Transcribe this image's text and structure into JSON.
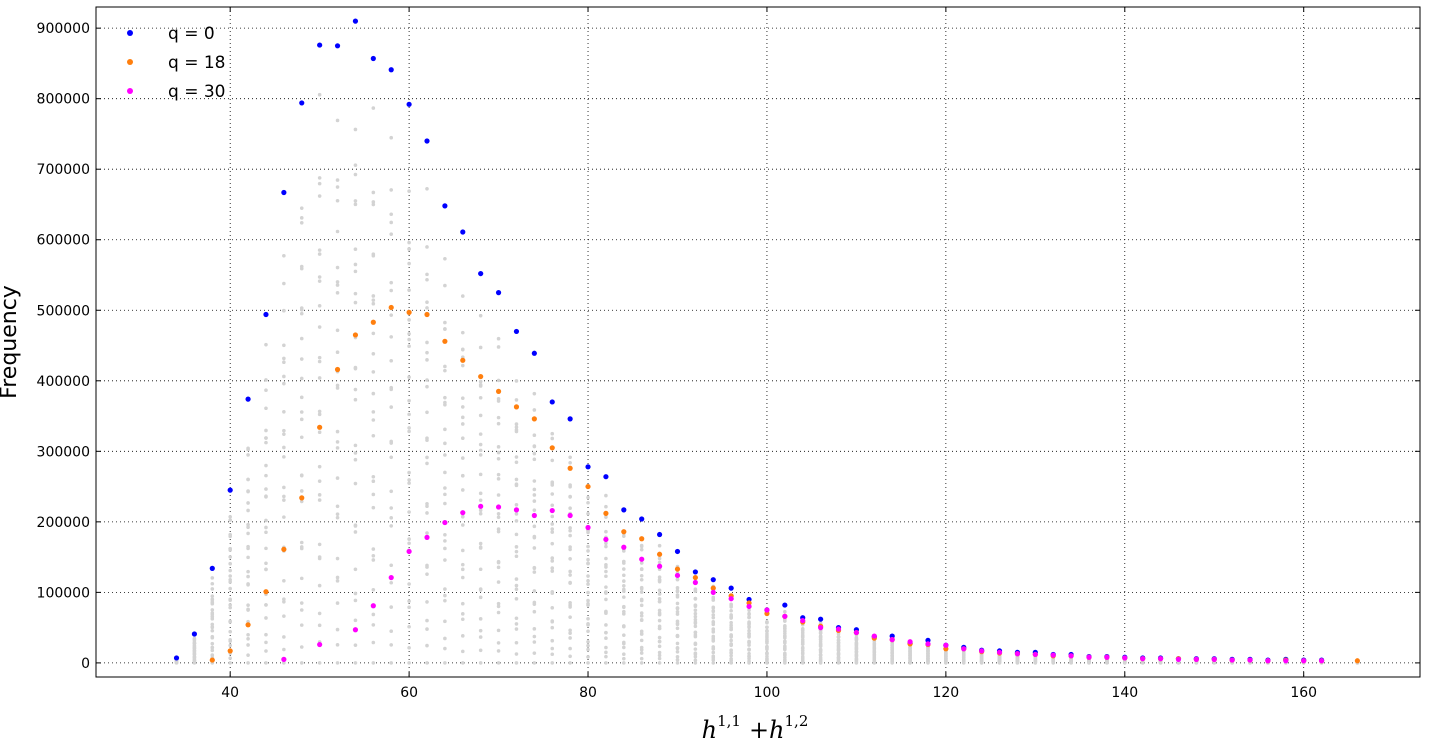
{
  "chart_data": {
    "type": "scatter",
    "xlabel_parts": [
      "h",
      "1,1",
      "+h",
      "1,2"
    ],
    "ylabel": "Frequency",
    "xlim": [
      25,
      173
    ],
    "ylim": [
      -20000,
      930000
    ],
    "xticks": [
      40,
      60,
      80,
      100,
      120,
      140,
      160
    ],
    "yticks": [
      0,
      100000,
      200000,
      300000,
      400000,
      500000,
      600000,
      700000,
      800000,
      900000
    ],
    "grid": true,
    "legend_position": "top-left",
    "colors": {
      "q0": "#0000ff",
      "q18": "#ff7f0e",
      "q30": "#ff00ff",
      "background": "#d3d3d3"
    },
    "series": [
      {
        "name": "q = 0",
        "color": "#0000ff",
        "x": [
          34,
          36,
          38,
          40,
          42,
          44,
          46,
          48,
          50,
          52,
          54,
          56,
          58,
          60,
          62,
          64,
          66,
          68,
          70,
          72,
          74,
          76,
          78,
          80,
          82,
          84,
          86,
          88,
          90,
          92,
          94,
          96,
          98,
          100,
          102,
          104,
          106,
          108,
          110,
          112,
          114,
          116,
          118,
          120,
          122,
          124,
          126,
          128,
          130,
          132,
          134,
          136,
          138,
          140,
          142,
          144,
          146,
          148,
          150,
          152,
          154,
          156,
          158,
          160,
          162
        ],
        "y": [
          7000,
          41000,
          134000,
          245000,
          374000,
          494000,
          667000,
          794000,
          876000,
          875000,
          910000,
          857000,
          841000,
          792000,
          740000,
          648000,
          611000,
          552000,
          525000,
          470000,
          439000,
          370000,
          346000,
          278000,
          264000,
          217000,
          204000,
          182000,
          158000,
          129000,
          118000,
          106000,
          90000,
          75000,
          82000,
          64000,
          62000,
          50000,
          47000,
          37000,
          38000,
          28000,
          32000,
          25000,
          22000,
          18000,
          17000,
          15000,
          15000,
          12000,
          12000,
          9000,
          9000,
          8000,
          7000,
          7000,
          6000,
          6000,
          6000,
          5000,
          5000,
          4000,
          5000,
          4000,
          4000
        ]
      },
      {
        "name": "q = 18",
        "color": "#ff7f0e",
        "x": [
          38,
          40,
          42,
          44,
          46,
          48,
          50,
          52,
          54,
          56,
          58,
          60,
          62,
          64,
          66,
          68,
          70,
          72,
          74,
          76,
          78,
          80,
          82,
          84,
          86,
          88,
          90,
          92,
          94,
          96,
          98,
          100,
          102,
          104,
          106,
          108,
          110,
          112,
          114,
          116,
          118,
          120,
          122,
          124,
          126,
          128,
          130,
          132,
          134,
          136,
          138,
          140,
          142,
          144,
          146,
          148,
          150,
          152,
          154,
          156,
          158,
          160,
          162,
          166
        ],
        "y": [
          4000,
          17000,
          54000,
          101000,
          161000,
          234000,
          334000,
          416000,
          465000,
          483000,
          504000,
          497000,
          494000,
          456000,
          429000,
          406000,
          385000,
          363000,
          346000,
          305000,
          276000,
          250000,
          212000,
          186000,
          176000,
          154000,
          133000,
          121000,
          106000,
          95000,
          85000,
          70000,
          66000,
          58000,
          52000,
          46000,
          43000,
          35000,
          33000,
          27000,
          26000,
          20000,
          20000,
          16000,
          14000,
          13000,
          12000,
          10000,
          10000,
          8000,
          8000,
          7000,
          6000,
          6000,
          6000,
          5000,
          5000,
          4000,
          4000,
          3000,
          4000,
          3000,
          3000,
          3000
        ]
      },
      {
        "name": "q = 30",
        "color": "#ff00ff",
        "x": [
          46,
          50,
          54,
          56,
          58,
          60,
          62,
          64,
          66,
          68,
          70,
          72,
          74,
          76,
          78,
          80,
          82,
          84,
          86,
          88,
          90,
          92,
          94,
          96,
          98,
          100,
          102,
          104,
          106,
          108,
          110,
          112,
          114,
          116,
          118,
          120,
          122,
          124,
          126,
          128,
          130,
          132,
          134,
          136,
          138,
          140,
          142,
          144,
          146,
          148,
          150,
          152,
          154,
          156,
          158,
          160,
          162
        ],
        "y": [
          5000,
          26000,
          47000,
          81000,
          121000,
          158000,
          178000,
          199000,
          213000,
          222000,
          221000,
          217000,
          209000,
          216000,
          209000,
          192000,
          175000,
          164000,
          147000,
          137000,
          124000,
          114000,
          100000,
          91000,
          80000,
          75000,
          66000,
          60000,
          50000,
          48000,
          43000,
          38000,
          33000,
          30000,
          27000,
          25000,
          20000,
          17000,
          15000,
          13000,
          12000,
          11000,
          10000,
          8000,
          8000,
          7000,
          6000,
          6000,
          5000,
          5000,
          5000,
          4000,
          4000,
          3000,
          3000,
          3000,
          3000
        ]
      }
    ]
  }
}
